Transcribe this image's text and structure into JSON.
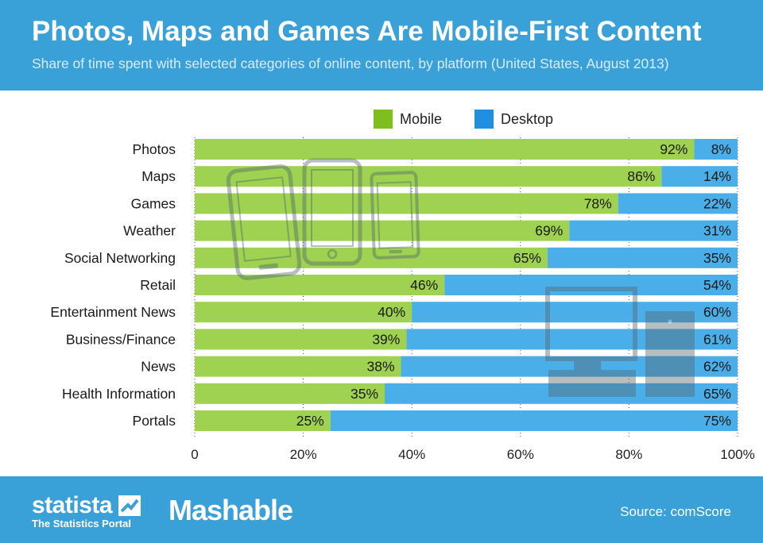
{
  "header": {
    "title": "Photos, Maps and Games Are Mobile-First Content",
    "subtitle": "Share of time spent with selected categories of online content, by platform (United States, August 2013)"
  },
  "legend": {
    "mobile_label": "Mobile",
    "desktop_label": "Desktop"
  },
  "colors": {
    "header_bg": "#3aa0d8",
    "mobile": "#9ed250",
    "mobile_legend": "#7cbf1e",
    "desktop": "#4aaee8",
    "desktop_legend": "#1f8fe0",
    "watermark": "#55646e"
  },
  "footer": {
    "statista_logo": "statista",
    "statista_tagline": "The Statistics Portal",
    "partner_logo": "Mashable",
    "source": "Source: comScore"
  },
  "chart_data": {
    "type": "bar",
    "orientation": "horizontal",
    "stacked": true,
    "title": "Photos, Maps and Games Are Mobile-First Content",
    "subtitle": "Share of time spent with selected categories of online content, by platform (United States, August 2013)",
    "categories": [
      "Photos",
      "Maps",
      "Games",
      "Weather",
      "Social Networking",
      "Retail",
      "Entertainment News",
      "Business/Finance",
      "News",
      "Health Information",
      "Portals"
    ],
    "series": [
      {
        "name": "Mobile",
        "values": [
          92,
          86,
          78,
          69,
          65,
          46,
          40,
          39,
          38,
          35,
          25
        ]
      },
      {
        "name": "Desktop",
        "values": [
          8,
          14,
          22,
          31,
          35,
          54,
          60,
          61,
          62,
          65,
          75
        ]
      }
    ],
    "value_labels": {
      "mobile": [
        "92%",
        "86%",
        "78%",
        "69%",
        "65%",
        "46%",
        "40%",
        "39%",
        "38%",
        "35%",
        "25%"
      ],
      "desktop": [
        "8%",
        "14%",
        "22%",
        "31%",
        "35%",
        "54%",
        "60%",
        "61%",
        "62%",
        "65%",
        "75%"
      ]
    },
    "xlim": [
      0,
      100
    ],
    "xticks": [
      0,
      20,
      40,
      60,
      80,
      100
    ],
    "xtick_labels": [
      "0",
      "20%",
      "40%",
      "60%",
      "80%",
      "100%"
    ],
    "grid": "vertical-dotted",
    "legend_position": "top-center",
    "xlabel": "",
    "ylabel": ""
  }
}
